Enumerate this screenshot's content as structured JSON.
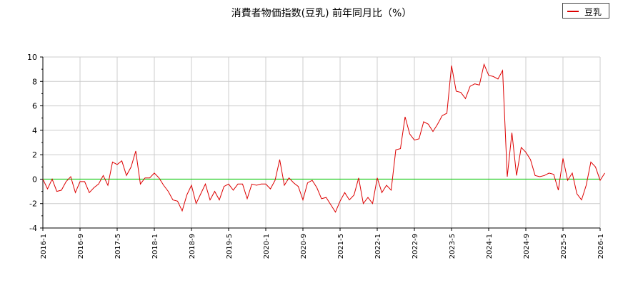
{
  "chart_data": {
    "type": "line",
    "title": "消費者物価指数(豆乳) 前年同月比（%）",
    "xlabel": "",
    "ylabel": "",
    "ylim": [
      -4,
      10
    ],
    "yticks": [
      -4,
      -2,
      0,
      2,
      4,
      6,
      8,
      10
    ],
    "xticks": [
      "2016-1",
      "2016-9",
      "2017-5",
      "2018-1",
      "2018-9",
      "2019-5",
      "2020-1",
      "2020-9",
      "2021-5",
      "2022-1",
      "2022-9",
      "2023-5",
      "2024-1",
      "2024-9",
      "2025-5",
      "2026-1"
    ],
    "x_start": "2016-1",
    "x_end": "2026-1",
    "grid": true,
    "legend_position": "top-right",
    "series": [
      {
        "name": "豆乳",
        "color": "#dd0000",
        "values": [
          0.0,
          -0.8,
          0.0,
          -1.0,
          -0.9,
          -0.2,
          0.2,
          -1.1,
          -0.2,
          -0.2,
          -1.1,
          -0.7,
          -0.4,
          0.3,
          -0.5,
          1.4,
          1.2,
          1.5,
          0.3,
          1.0,
          2.3,
          -0.4,
          0.1,
          0.1,
          0.5,
          0.1,
          -0.5,
          -1.0,
          -1.7,
          -1.8,
          -2.6,
          -1.3,
          -0.5,
          -2.0,
          -1.2,
          -0.4,
          -1.7,
          -1.0,
          -1.7,
          -0.6,
          -0.4,
          -0.9,
          -0.4,
          -0.4,
          -1.6,
          -0.4,
          -0.5,
          -0.4,
          -0.4,
          -0.8,
          -0.1,
          1.6,
          -0.5,
          0.1,
          -0.3,
          -0.6,
          -1.7,
          -0.3,
          -0.1,
          -0.7,
          -1.6,
          -1.5,
          -2.1,
          -2.7,
          -1.8,
          -1.1,
          -1.7,
          -1.3,
          0.1,
          -2.0,
          -1.5,
          -2.0,
          0.1,
          -1.1,
          -0.5,
          -0.9,
          2.4,
          2.5,
          5.1,
          3.7,
          3.2,
          3.3,
          4.7,
          4.5,
          3.9,
          4.5,
          5.2,
          5.4,
          9.3,
          7.2,
          7.1,
          6.6,
          7.6,
          7.8,
          7.7,
          9.4,
          8.5,
          8.4,
          8.2,
          8.9,
          0.2,
          3.8,
          0.3,
          2.6,
          2.2,
          1.6,
          0.3,
          0.2,
          0.3,
          0.5,
          0.4,
          -0.9,
          1.7,
          -0.1,
          0.5,
          -1.2,
          -1.7,
          -0.5,
          1.4,
          1.0,
          -0.1,
          0.5
        ]
      }
    ],
    "reference_line": {
      "y": 0,
      "color": "#00cc00"
    }
  }
}
